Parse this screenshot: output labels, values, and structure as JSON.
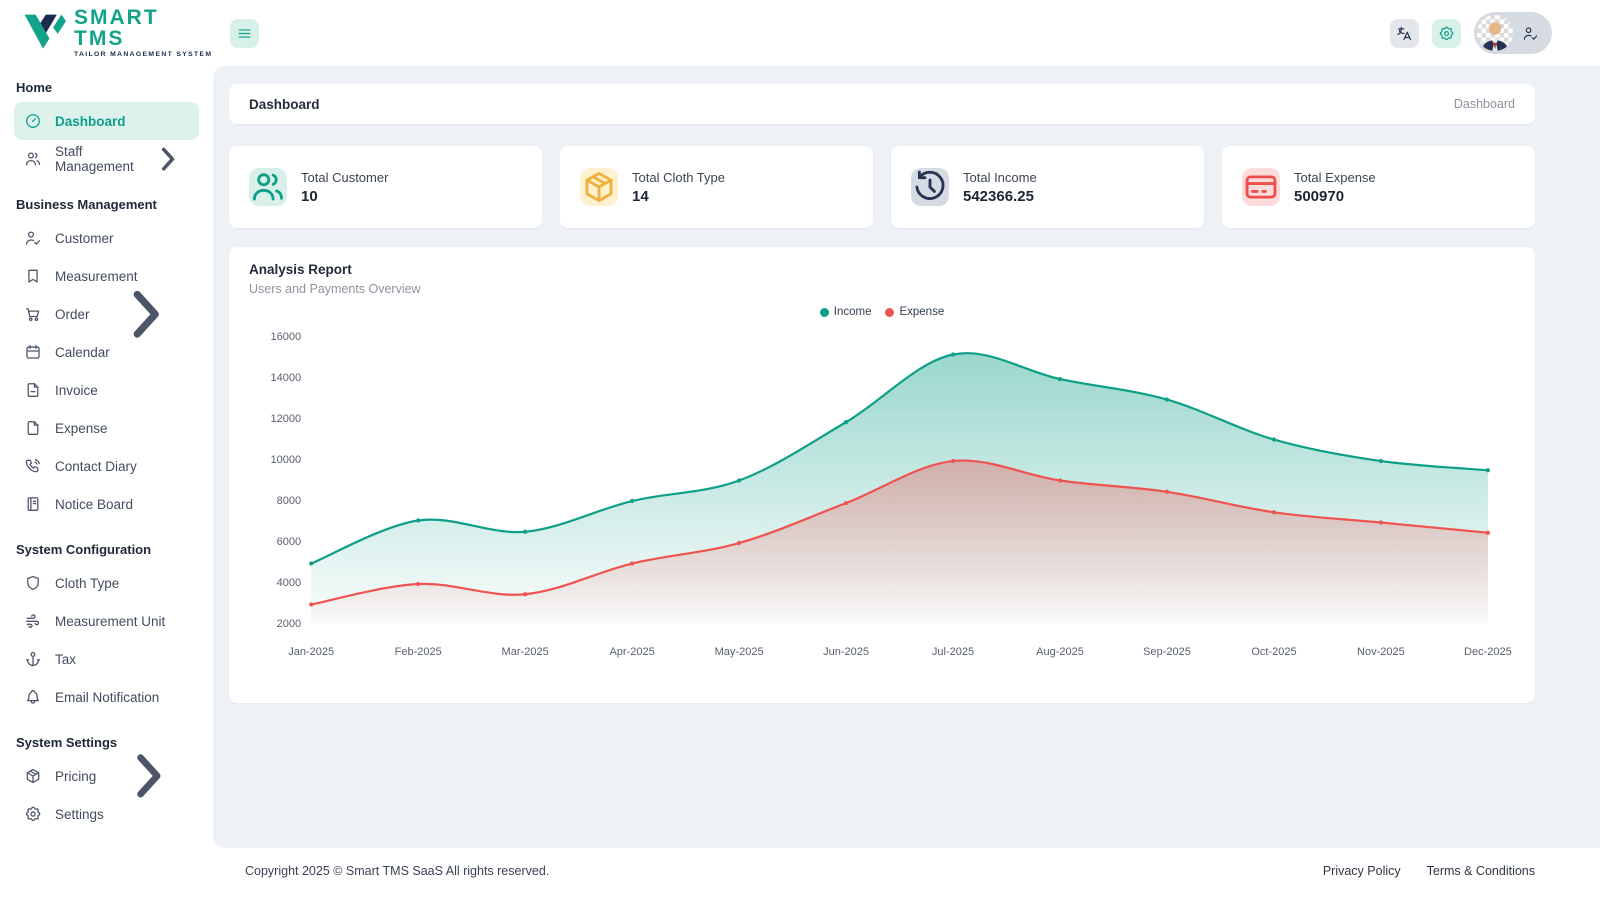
{
  "brand": {
    "name": "SMART TMS",
    "tagline": "TAILOR MANAGEMENT SYSTEM"
  },
  "topbar": {
    "hamburger_icon": "menu-icon",
    "actions": [
      {
        "name": "language-button",
        "icon": "language-icon"
      },
      {
        "name": "settings-button",
        "icon": "gear-icon"
      },
      {
        "name": "profile-button",
        "icon": "user-check-icon"
      }
    ]
  },
  "sidebar": {
    "sections": [
      {
        "title": "Home",
        "items": [
          {
            "label": "Dashboard",
            "icon": "gauge-icon",
            "active": true
          },
          {
            "label": "Staff Management",
            "icon": "users-icon",
            "chevron": true
          }
        ]
      },
      {
        "title": "Business Management",
        "items": [
          {
            "label": "Customer",
            "icon": "user-check-icon"
          },
          {
            "label": "Measurement",
            "icon": "bookmark-icon"
          },
          {
            "label": "Order",
            "icon": "cart-icon",
            "chevron": true
          },
          {
            "label": "Calendar",
            "icon": "calendar-icon"
          },
          {
            "label": "Invoice",
            "icon": "file-minus-icon"
          },
          {
            "label": "Expense",
            "icon": "file-icon"
          },
          {
            "label": "Contact Diary",
            "icon": "phone-call-icon"
          },
          {
            "label": "Notice Board",
            "icon": "notebook-icon"
          }
        ]
      },
      {
        "title": "System Configuration",
        "items": [
          {
            "label": "Cloth Type",
            "icon": "shield-icon"
          },
          {
            "label": "Measurement Unit",
            "icon": "wind-icon"
          },
          {
            "label": "Tax",
            "icon": "anchor-icon"
          },
          {
            "label": "Email Notification",
            "icon": "bell-icon"
          }
        ]
      },
      {
        "title": "System Settings",
        "items": [
          {
            "label": "Pricing",
            "icon": "package-icon",
            "chevron": true
          },
          {
            "label": "Settings",
            "icon": "gear-icon"
          }
        ]
      }
    ]
  },
  "header_card": {
    "title": "Dashboard",
    "breadcrumb": "Dashboard"
  },
  "stats": [
    {
      "label": "Total Customer",
      "value": "10",
      "icon": "users-icon",
      "color": "#0d9f87",
      "bg": "#d8f0e9"
    },
    {
      "label": "Total Cloth Type",
      "value": "14",
      "icon": "package-icon",
      "color": "#efb03c",
      "bg": "#fdf1cf"
    },
    {
      "label": "Total Income",
      "value": "542366.25",
      "icon": "history-icon",
      "color": "#273352",
      "bg": "#d6dae2"
    },
    {
      "label": "Total Expense",
      "value": "500970",
      "icon": "credit-card-icon",
      "color": "#ef4d4a",
      "bg": "#fcdcda"
    }
  ],
  "chart_data": {
    "type": "area",
    "title": "Analysis Report",
    "subtitle": "Users and Payments Overview",
    "x": [
      "Jan-2025",
      "Feb-2025",
      "Mar-2025",
      "Apr-2025",
      "May-2025",
      "Jun-2025",
      "Jul-2025",
      "Aug-2025",
      "Sep-2025",
      "Oct-2025",
      "Nov-2025",
      "Dec-2025"
    ],
    "series": [
      {
        "name": "Income",
        "color": "#0d9f87",
        "values": [
          4900,
          7000,
          6450,
          7950,
          8950,
          11800,
          15100,
          13900,
          12900,
          10950,
          9900,
          9450
        ]
      },
      {
        "name": "Expense",
        "color": "#ef5350",
        "values": [
          2900,
          3900,
          3400,
          4900,
          5900,
          7850,
          9900,
          8950,
          8400,
          7400,
          6900,
          6400
        ]
      }
    ],
    "ylim": [
      2000,
      16000
    ],
    "yticks": [
      2000,
      4000,
      6000,
      8000,
      10000,
      12000,
      14000,
      16000
    ],
    "legend_position": "top",
    "grid": false,
    "smooth": true
  },
  "footer": {
    "copyright": "Copyright 2025 © Smart TMS SaaS All rights reserved.",
    "links": [
      "Privacy Policy",
      "Terms & Conditions"
    ]
  }
}
